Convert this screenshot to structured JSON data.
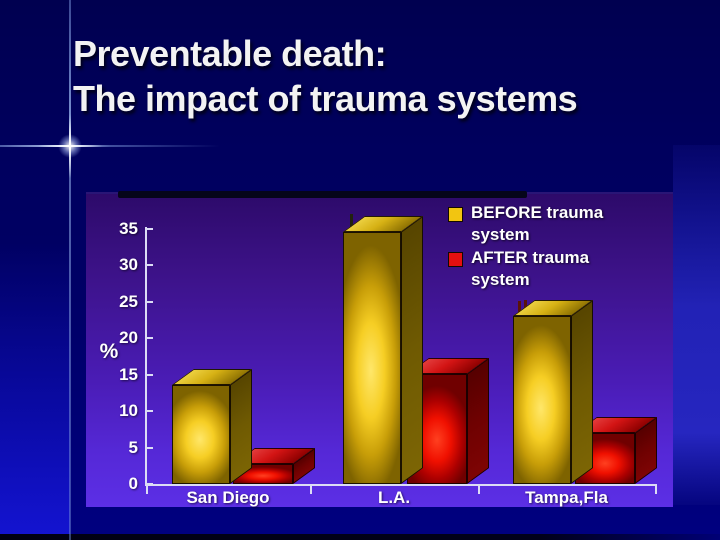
{
  "slide": {
    "title_line1": "Preventable death:",
    "title_line2": "The impact of trauma systems"
  },
  "chart_data": {
    "type": "bar",
    "style": "3d-columns",
    "title": "",
    "categories": [
      "San Diego",
      "L.A.",
      "Tampa,Fla"
    ],
    "series": [
      {
        "name": "BEFORE trauma system",
        "color": "#f2c511",
        "values": [
          13.5,
          34.5,
          23
        ]
      },
      {
        "name": "AFTER trauma system",
        "color": "#e51010",
        "values": [
          2.7,
          15,
          7
        ]
      }
    ],
    "xlabel": "",
    "ylabel": "%",
    "ylim": [
      0,
      35
    ],
    "yticks": [
      0,
      5,
      10,
      15,
      20,
      25,
      30,
      35
    ],
    "grid": false,
    "legend_position": "top-right",
    "colors": {
      "slide_background": "#000066",
      "panel_gradient_top": "#2d0a6a",
      "panel_gradient_bottom": "#5c2fe6",
      "axis": "#dcdcf5",
      "text": "#ffffff"
    }
  }
}
